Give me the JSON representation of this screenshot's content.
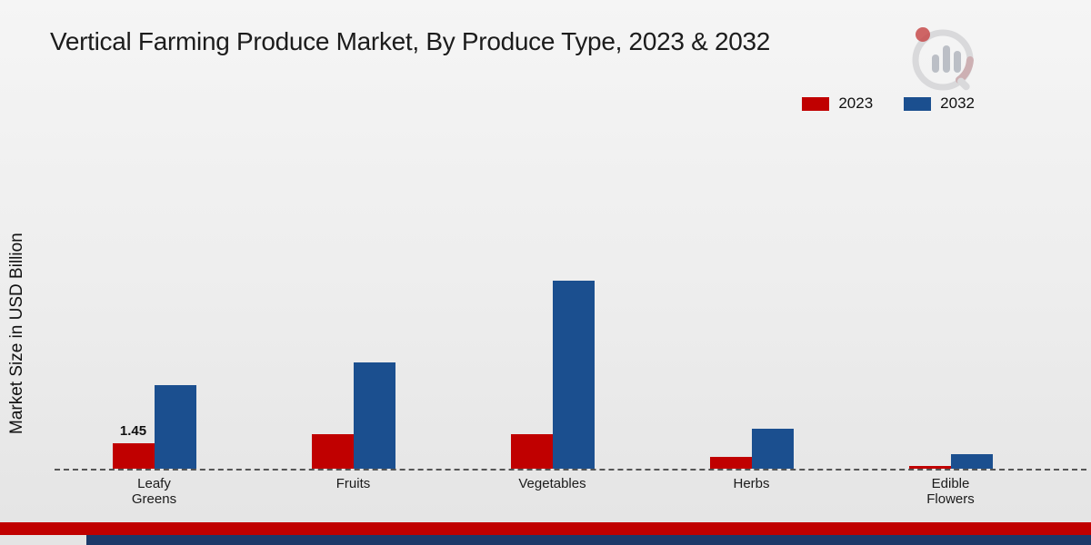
{
  "page": {
    "title": "Vertical Farming Produce Market, By Produce Type, 2023 & 2032",
    "ylabel": "Market Size in USD Billion"
  },
  "legend": {
    "items": [
      {
        "label": "2023",
        "color": "#c00000"
      },
      {
        "label": "2032",
        "color": "#1b4f8f"
      }
    ]
  },
  "chart_data": {
    "type": "bar",
    "title": "Vertical Farming Produce Market, By Produce Type, 2023 & 2032",
    "xlabel": "",
    "ylabel": "Market Size in USD Billion",
    "categories": [
      "Leafy Greens",
      "Fruits",
      "Vegetables",
      "Herbs",
      "Edible Flowers"
    ],
    "series": [
      {
        "name": "2023",
        "color": "#c00000",
        "values": [
          1.45,
          2.0,
          2.0,
          0.7,
          0.15
        ]
      },
      {
        "name": "2032",
        "color": "#1b4f8f",
        "values": [
          4.8,
          6.1,
          10.8,
          2.3,
          0.85
        ]
      }
    ],
    "data_labels": [
      {
        "series": "2023",
        "category": "Leafy Greens",
        "text": "1.45"
      }
    ],
    "ylim": [
      0,
      11
    ],
    "grid": false,
    "baseline_style": "dashed",
    "legend_position": "top-right"
  },
  "branding": {
    "logo": "bar-chart-magnifier-logo",
    "footer_stripes": [
      "#c00000",
      "#1c3969"
    ]
  }
}
